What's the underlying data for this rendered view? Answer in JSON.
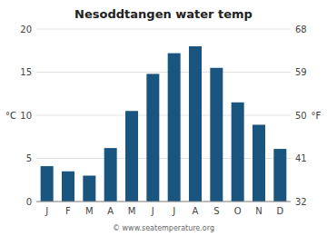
{
  "chart_data": {
    "type": "bar",
    "title": "Nesoddtangen water temp",
    "categories": [
      "J",
      "F",
      "M",
      "A",
      "M",
      "J",
      "J",
      "A",
      "S",
      "O",
      "N",
      "D"
    ],
    "values": [
      4.1,
      3.5,
      3.0,
      6.2,
      10.5,
      14.8,
      17.2,
      18.0,
      15.5,
      11.5,
      8.9,
      6.1
    ],
    "color": "#1a5580",
    "ylabel": "°C",
    "y2label": "°F",
    "ylim": [
      0,
      20
    ],
    "yticks": [
      0,
      5,
      10,
      15,
      20
    ],
    "y2lim": [
      32,
      68
    ],
    "y2ticks": [
      32,
      41,
      50,
      59,
      68
    ],
    "grid": true,
    "annotations": [
      "© www.seatemperature.org"
    ]
  }
}
